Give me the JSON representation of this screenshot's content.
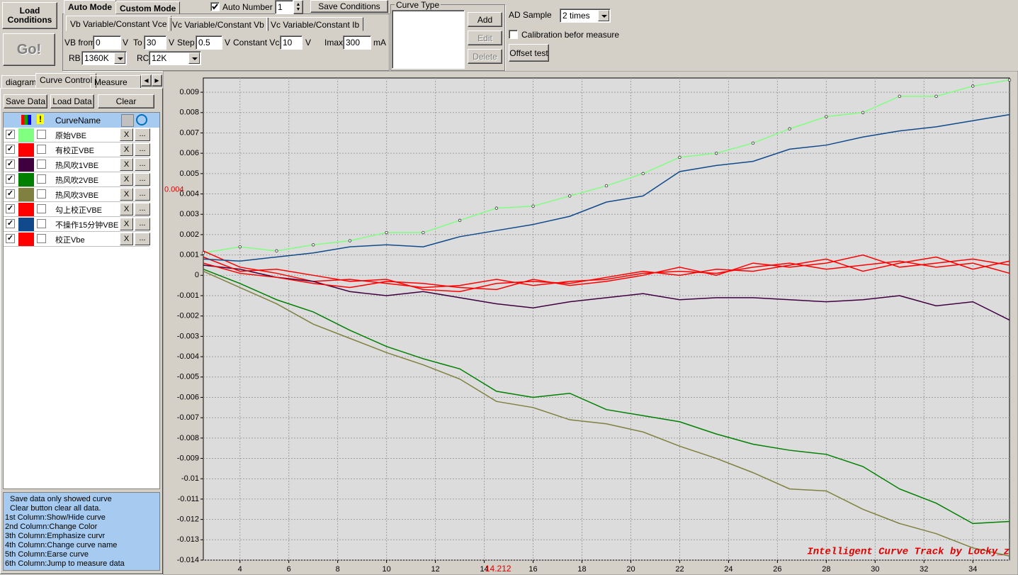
{
  "toolbar": {
    "load_conditions": "Load Conditions",
    "go": "Go!",
    "mode_tabs": [
      "Auto Mode",
      "Custom Mode"
    ],
    "auto_number_label": "Auto Number",
    "auto_number": 1,
    "save_conditions": "Save Conditions",
    "sub_tabs": [
      "Vb Variable/Constant Vce",
      "Vc Variable/Constant Vb",
      "Vc Variable/Constant Ib"
    ],
    "vb_from_label": "VB from",
    "vb_from": 0,
    "unit_v": "V",
    "to_label": "To",
    "to": 30,
    "step_label": "Step",
    "step": 0.5,
    "constant_vce_label": "Constant Vce",
    "constant_vce": 10,
    "imax_label": "Imax",
    "imax": 300,
    "unit_ma": "mA",
    "rb_label": "RB",
    "rb": "1360K",
    "rc_label": "RC",
    "rc": "12K",
    "curve_type_label": "Curve Type",
    "add": "Add",
    "edit": "Edit",
    "delete": "Delete",
    "ad_sample_label": "AD Sample",
    "ad_sample": "2 times",
    "calibration": "Calibration befor measure",
    "offset_test": "Offset test"
  },
  "left_panel": {
    "tabs": [
      "diagram",
      "Curve Control",
      "Measure Data"
    ],
    "save_data": "Save Data",
    "load_data": "Load Data",
    "clear": "Clear",
    "header": "CurveName",
    "erase": "X",
    "jump": "...",
    "help": [
      "Save data only showed curve",
      "Clear button clear all data.",
      "1st Column:Show/Hide curve",
      "2nd Column:Change Color",
      "3th Column:Emphasize curvr",
      "4th Column:Change curve name",
      "5th Column:Earse curve",
      "6th Column:Jump to measure data"
    ]
  },
  "chart_data": {
    "type": "line",
    "watermark": "Intelligent Curve Track by Locky_z",
    "cursor": {
      "x": 14.212,
      "y": 0.004
    },
    "xlim": [
      2.5,
      35.5
    ],
    "ylim": [
      -0.014,
      0.0097
    ],
    "grid": true,
    "xticks": [
      4,
      6,
      8,
      10,
      12,
      14,
      16,
      18,
      20,
      22,
      24,
      26,
      28,
      30,
      32,
      34
    ],
    "yticks": [
      0.009,
      0.008,
      0.007,
      0.006,
      0.005,
      0.004,
      0.003,
      0.002,
      0.001,
      0,
      -0.001,
      -0.002,
      -0.003,
      -0.004,
      -0.005,
      -0.006,
      -0.007,
      -0.008,
      -0.009,
      -0.01,
      -0.011,
      -0.012,
      -0.013,
      -0.014
    ],
    "x": [
      2.5,
      4,
      5.5,
      7,
      8.5,
      10,
      11.5,
      13,
      14.5,
      16,
      17.5,
      19,
      20.5,
      22,
      23.5,
      25,
      26.5,
      28,
      29.5,
      31,
      32.5,
      34,
      35.5
    ],
    "series": [
      {
        "name": "原始VBE",
        "color": "#80ff80",
        "markers": true,
        "values": [
          0.0011,
          0.0014,
          0.0012,
          0.0015,
          0.0017,
          0.0021,
          0.0021,
          0.0027,
          0.0033,
          0.0034,
          0.0039,
          0.0044,
          0.005,
          0.0058,
          0.006,
          0.0065,
          0.0072,
          0.0078,
          0.008,
          0.0088,
          0.0088,
          0.0093,
          0.0096
        ]
      },
      {
        "name": "有校正VBE",
        "color": "#ff0000",
        "values": [
          0.0012,
          0.0004,
          0.0001,
          -0.0003,
          -0.0002,
          -0.0004,
          -0.0006,
          -0.0005,
          -0.0002,
          -0.0005,
          -0.0003,
          -0.0002,
          0.0001,
          0.0002,
          0.0001,
          0.0004,
          0.0006,
          0.0003,
          0.0005,
          0.0007,
          0.0004,
          0.0006,
          0.0001
        ]
      },
      {
        "name": "热风吹1VBE",
        "color": "#400040",
        "values": [
          0.0005,
          0.0003,
          -0.0001,
          -0.0003,
          -0.0008,
          -0.001,
          -0.0008,
          -0.0011,
          -0.0014,
          -0.0016,
          -0.0013,
          -0.0011,
          -0.0009,
          -0.0012,
          -0.0011,
          -0.0011,
          -0.0012,
          -0.0013,
          -0.0012,
          -0.001,
          -0.0015,
          -0.0013,
          -0.0022
        ]
      },
      {
        "name": "热风吹2VBE",
        "color": "#008000",
        "values": [
          0.0003,
          -0.0004,
          -0.0012,
          -0.0018,
          -0.0027,
          -0.0035,
          -0.0041,
          -0.0046,
          -0.0057,
          -0.006,
          -0.0058,
          -0.0066,
          -0.0069,
          -0.0072,
          -0.0078,
          -0.0083,
          -0.0086,
          -0.0088,
          -0.0094,
          -0.0105,
          -0.0112,
          -0.0122,
          -0.0121
        ]
      },
      {
        "name": "热风吹3VBE",
        "color": "#808040",
        "values": [
          0.0002,
          -0.0006,
          -0.0014,
          -0.0024,
          -0.0031,
          -0.0038,
          -0.0044,
          -0.0051,
          -0.0062,
          -0.0065,
          -0.0071,
          -0.0073,
          -0.0077,
          -0.0084,
          -0.009,
          -0.0097,
          -0.0105,
          -0.0106,
          -0.0115,
          -0.0122,
          -0.0127,
          -0.0134,
          -0.0138
        ]
      },
      {
        "name": "勾上校正VBE",
        "color": "#ff0000",
        "values": [
          0.0009,
          0.0002,
          0.0003,
          0,
          -0.0003,
          -0.0002,
          -0.0007,
          -0.0008,
          -0.0004,
          -0.0003,
          -0.0004,
          -0.0001,
          0.0002,
          0,
          0.0003,
          0.0002,
          0.0005,
          0.0008,
          0.0002,
          0.0006,
          0.0009,
          0.0003,
          0.0007
        ]
      },
      {
        "name": "不操作15分钟VBE",
        "color": "#104a8c",
        "values": [
          0.0008,
          0.0007,
          0.0009,
          0.0011,
          0.0014,
          0.0015,
          0.0014,
          0.0019,
          0.0022,
          0.0025,
          0.0029,
          0.0036,
          0.0039,
          0.0051,
          0.0054,
          0.0056,
          0.0062,
          0.0064,
          0.0068,
          0.0071,
          0.0073,
          0.0076,
          0.0079
        ]
      },
      {
        "name": "校正Vbe",
        "color": "#ff0000",
        "values": [
          0.0006,
          0.0001,
          -0.0001,
          -0.0004,
          -0.0006,
          -0.0003,
          -0.0004,
          -0.0006,
          -0.0007,
          -0.0002,
          -0.0005,
          -0.0003,
          0,
          0.0004,
          0,
          0.0006,
          0.0004,
          0.0006,
          0.001,
          0.0004,
          0.0006,
          0.0008,
          0.0005
        ]
      }
    ]
  }
}
